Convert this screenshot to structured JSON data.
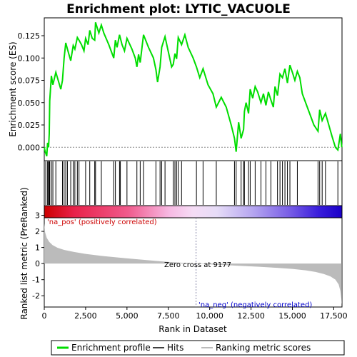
{
  "chart_data": {
    "type": "line",
    "title": "Enrichment plot: LYTIC_VACUOLE",
    "es_panel": {
      "ylabel": "Enrichment score (ES)",
      "ylim": [
        -0.015,
        0.145
      ],
      "yticks": [
        0.0,
        0.025,
        0.05,
        0.075,
        0.1,
        0.125
      ],
      "ytick_labels": [
        "0.000",
        "0.025",
        "0.050",
        "0.075",
        "0.100",
        "0.125"
      ],
      "series": [
        {
          "color": "#00dd00",
          "x": [
            0,
            60,
            150,
            200,
            260,
            300,
            330,
            430,
            520,
            700,
            1000,
            1100,
            1200,
            1300,
            1400,
            1600,
            1750,
            1850,
            2000,
            2100,
            2250,
            2400,
            2500,
            2650,
            2750,
            2900,
            3050,
            3100,
            3300,
            3450,
            3600,
            3900,
            4200,
            4300,
            4400,
            4550,
            4700,
            4850,
            5000,
            5300,
            5500,
            5600,
            5700,
            5800,
            6000,
            6300,
            6600,
            6750,
            6850,
            7000,
            7100,
            7300,
            7500,
            7700,
            7800,
            7900,
            8000,
            8100,
            8300,
            8500,
            8700,
            9000,
            9200,
            9400,
            9600,
            9900,
            10200,
            10400,
            10700,
            11000,
            11300,
            11500,
            11600,
            11750,
            11900,
            12050,
            12100,
            12200,
            12350,
            12450,
            12600,
            12750,
            12900,
            13100,
            13250,
            13400,
            13550,
            13700,
            13850,
            13950,
            14100,
            14250,
            14400,
            14550,
            14700,
            14850,
            15000,
            15150,
            15300,
            15450,
            15600,
            15800,
            16000,
            16300,
            16550,
            16650,
            16800,
            17000,
            17200,
            17400,
            17600,
            17750,
            17900,
            17990
          ],
          "y": [
            0.0,
            -0.005,
            -0.01,
            0.005,
            0.0,
            0.015,
            0.052,
            0.08,
            0.07,
            0.084,
            0.065,
            0.075,
            0.1,
            0.117,
            0.11,
            0.097,
            0.114,
            0.11,
            0.123,
            0.12,
            0.115,
            0.108,
            0.122,
            0.115,
            0.131,
            0.122,
            0.12,
            0.14,
            0.128,
            0.137,
            0.128,
            0.115,
            0.1,
            0.12,
            0.112,
            0.126,
            0.115,
            0.108,
            0.122,
            0.11,
            0.1,
            0.09,
            0.104,
            0.095,
            0.126,
            0.112,
            0.1,
            0.087,
            0.073,
            0.09,
            0.112,
            0.124,
            0.107,
            0.09,
            0.093,
            0.105,
            0.099,
            0.123,
            0.115,
            0.126,
            0.112,
            0.1,
            0.09,
            0.078,
            0.088,
            0.07,
            0.06,
            0.045,
            0.056,
            0.045,
            0.025,
            0.01,
            -0.005,
            0.028,
            0.01,
            0.02,
            0.04,
            0.05,
            0.038,
            0.065,
            0.055,
            0.068,
            0.062,
            0.05,
            0.06,
            0.047,
            0.062,
            0.053,
            0.045,
            0.068,
            0.058,
            0.082,
            0.078,
            0.088,
            0.072,
            0.092,
            0.084,
            0.075,
            0.085,
            0.078,
            0.06,
            0.05,
            0.04,
            0.025,
            0.018,
            0.042,
            0.03,
            0.038,
            0.025,
            0.012,
            0.0,
            -0.003,
            0.015,
            0.0
          ]
        }
      ]
    },
    "hits_x": [
      90,
      200,
      260,
      300,
      330,
      430,
      520,
      700,
      1100,
      1200,
      1300,
      1400,
      1600,
      1750,
      1850,
      2000,
      2100,
      2500,
      2750,
      3050,
      3100,
      3450,
      4200,
      4300,
      4550,
      4600,
      5000,
      5600,
      5800,
      6000,
      6750,
      7000,
      7100,
      7300,
      7800,
      7900,
      8000,
      8100,
      8300,
      9200,
      9600,
      10400,
      11500,
      11600,
      11900,
      12050,
      12100,
      12350,
      12450,
      12750,
      13100,
      13400,
      13700,
      14100,
      14250,
      14400,
      14550,
      14700,
      14850,
      15300,
      16550,
      16650,
      16800,
      17000,
      17750
    ],
    "metric_panel": {
      "ylabel": "Ranked list metric (PreRanked)",
      "xlabel": "Rank in Dataset",
      "ylim": [
        -2.7,
        3.6
      ],
      "yticks": [
        -2,
        -1,
        0,
        1,
        2,
        3
      ],
      "ytick_labels": [
        "-2",
        "-1",
        "0",
        "1",
        "2",
        "3"
      ],
      "xticks": [
        0,
        2500,
        5000,
        7500,
        10000,
        12500,
        15000,
        17500
      ],
      "xtick_labels": [
        "0",
        "2,500",
        "5,000",
        "7,500",
        "10,000",
        "12,500",
        "15,000",
        "17,500"
      ],
      "xlim": [
        0,
        18000
      ],
      "fill_color": "#bbbbbb",
      "metric_x": [
        0,
        50,
        150,
        300,
        500,
        800,
        1200,
        1800,
        2500,
        3500,
        4500,
        5500,
        6500,
        7500,
        8500,
        9177,
        10000,
        11000,
        12000,
        13000,
        14000,
        15000,
        15800,
        16400,
        16900,
        17300,
        17600,
        17800,
        17900,
        17960,
        17990
      ],
      "metric_y": [
        2.5,
        1.95,
        1.6,
        1.35,
        1.15,
        0.98,
        0.85,
        0.72,
        0.6,
        0.47,
        0.37,
        0.28,
        0.19,
        0.1,
        0.04,
        0.0,
        -0.05,
        -0.1,
        -0.15,
        -0.2,
        -0.26,
        -0.33,
        -0.42,
        -0.52,
        -0.65,
        -0.8,
        -1.0,
        -1.3,
        -1.7,
        -2.2,
        -2.55
      ]
    },
    "annotations": {
      "pos_label": "'na_pos' (positively correlated)",
      "neg_label": "'na_neg' (negatively correlated)",
      "zero_cross": "Zero cross at 9177",
      "zero_cross_x": 9177
    },
    "legend": [
      {
        "label": "Enrichment profile",
        "color": "#00dd00"
      },
      {
        "label": "Hits",
        "color": "#000000"
      },
      {
        "label": "Ranking metric scores",
        "color": "#bbbbbb"
      }
    ]
  }
}
